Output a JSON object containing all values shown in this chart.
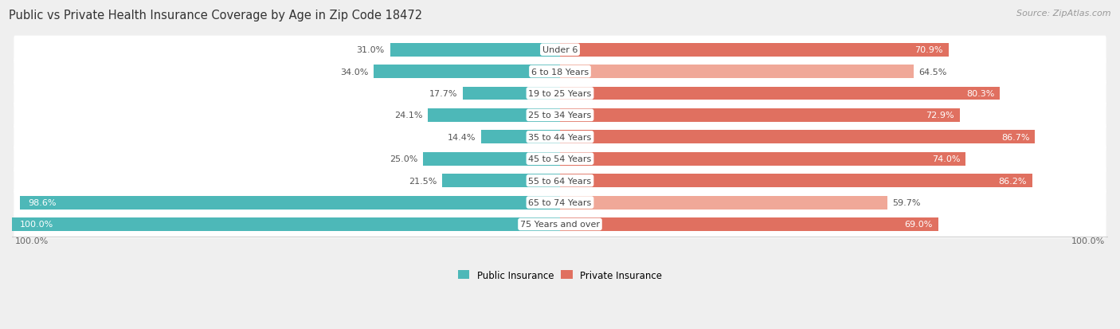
{
  "title": "Public vs Private Health Insurance Coverage by Age in Zip Code 18472",
  "source": "Source: ZipAtlas.com",
  "categories": [
    "Under 6",
    "6 to 18 Years",
    "19 to 25 Years",
    "25 to 34 Years",
    "35 to 44 Years",
    "45 to 54 Years",
    "55 to 64 Years",
    "65 to 74 Years",
    "75 Years and over"
  ],
  "public_values": [
    31.0,
    34.0,
    17.7,
    24.1,
    14.4,
    25.0,
    21.5,
    98.6,
    100.0
  ],
  "private_values": [
    70.9,
    64.5,
    80.3,
    72.9,
    86.7,
    74.0,
    86.2,
    59.7,
    69.0
  ],
  "public_color": "#4db8b8",
  "private_color_dark": "#e07060",
  "private_color_light": "#f0a898",
  "bg_color": "#efefef",
  "row_bg_color": "#f7f7f7",
  "row_alt_color": "#ebebeb",
  "title_fontsize": 10.5,
  "label_fontsize": 8,
  "value_fontsize": 8,
  "legend_fontsize": 8.5,
  "source_fontsize": 8,
  "max_value": 100.0,
  "bar_height": 0.62,
  "private_dark_threshold": 65.0
}
